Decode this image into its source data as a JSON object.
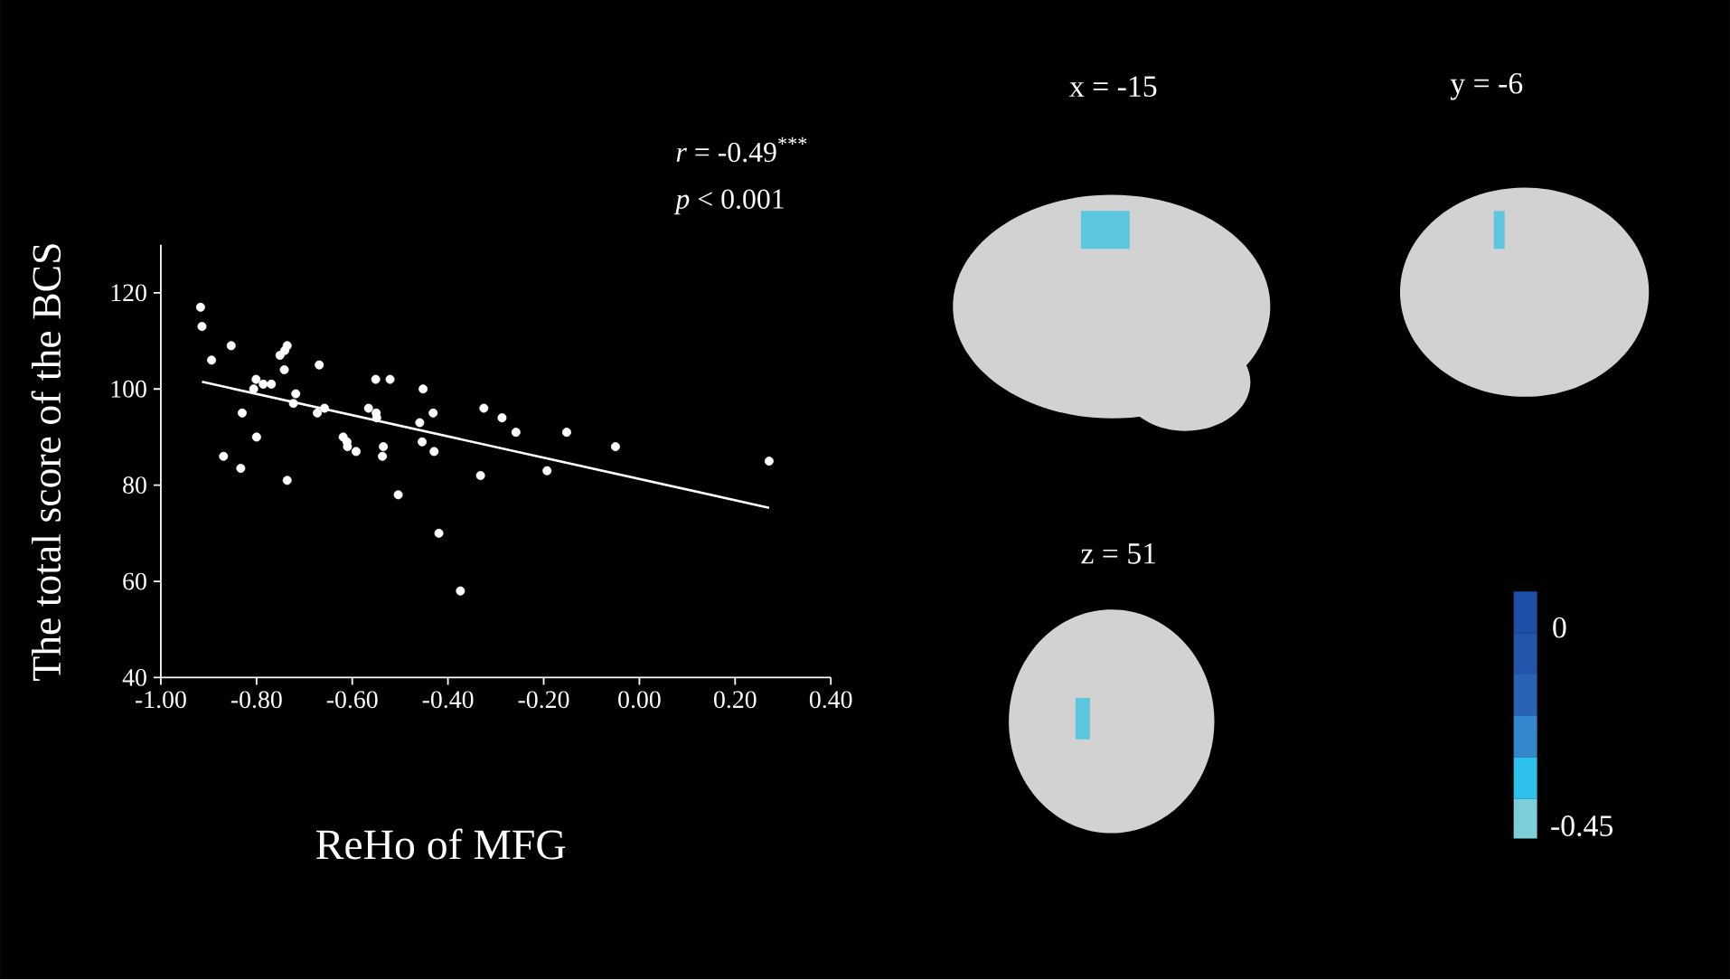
{
  "chart_data": [
    {
      "type": "scatter",
      "xlabel": "ReHo of MFG",
      "ylabel": "The total score of the BCS",
      "annotations": [
        "*r* = -0.49$^{***}$",
        "*p* < 0.001"
      ],
      "series": [
        {
          "type": "scatter",
          "color": "#ffffff",
          "marker": "circle",
          "x": [
            -0.917,
            -0.914,
            -0.894,
            -0.853,
            -0.869,
            -0.833,
            -0.83,
            -0.801,
            -0.806,
            -0.8,
            -0.786,
            -0.769,
            -0.751,
            -0.741,
            -0.736,
            -0.742,
            -0.736,
            -0.723,
            -0.718,
            -0.669,
            -0.673,
            -0.658,
            -0.619,
            -0.611,
            -0.61,
            -0.592,
            -0.566,
            -0.551,
            -0.55,
            -0.549,
            -0.521,
            -0.537,
            -0.535,
            -0.504,
            -0.459,
            -0.452,
            -0.454,
            -0.431,
            -0.429,
            -0.419,
            -0.374,
            -0.325,
            -0.287,
            -0.258,
            -0.152,
            -0.05,
            -0.332,
            -0.193,
            0.271
          ],
          "values": [
            117,
            113,
            106,
            109,
            86,
            83.5,
            95,
            102,
            100,
            90,
            101,
            101,
            107,
            108,
            109,
            104,
            81,
            97,
            99,
            105,
            95,
            96,
            90,
            89,
            88,
            87,
            96,
            102,
            95,
            94,
            102,
            86,
            88,
            78,
            93,
            100,
            89,
            95,
            87,
            70,
            58,
            96,
            94,
            91,
            91,
            88,
            82,
            83,
            85
          ]
        },
        {
          "type": "line",
          "color": "#ffffff",
          "x": [
            -0.914,
            0.271
          ],
          "values": [
            101.5,
            75.3
          ]
        }
      ],
      "xlim": [
        -1.0,
        0.4
      ],
      "xticks": [
        {
          "value": -1.0,
          "label": "-1.00"
        },
        {
          "value": -0.8,
          "label": "-0.80"
        },
        {
          "value": -0.6,
          "label": "-0.60"
        },
        {
          "value": -0.4,
          "label": "-0.40"
        },
        {
          "value": -0.2,
          "label": "-0.20"
        },
        {
          "value": 0.0,
          "label": "0.00"
        },
        {
          "value": 0.2,
          "label": "0.20"
        },
        {
          "value": 0.4,
          "label": "0.40"
        }
      ],
      "ylim": [
        40,
        130
      ],
      "yticks": [
        40,
        60,
        80,
        100,
        120
      ]
    },
    {
      "type": "other",
      "annotations": [
        "x = -15",
        "y = -6",
        "z = 51",
        "0",
        "-0.45"
      ]
    }
  ]
}
